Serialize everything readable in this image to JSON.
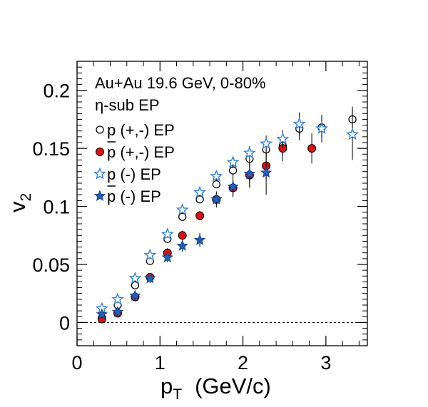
{
  "chart_data": {
    "type": "scatter",
    "xlim": [
      0,
      3.5
    ],
    "ylim": [
      -0.02,
      0.225
    ],
    "x_ticks": [
      0,
      1,
      2,
      3
    ],
    "y_ticks": [
      0,
      0.05,
      0.1,
      0.15,
      0.2
    ],
    "x_tick_labels": [
      "0",
      "1",
      "2",
      "3"
    ],
    "y_tick_labels": [
      "0",
      "0.05",
      "0.1",
      "0.15",
      "0.2"
    ],
    "xlabel": {
      "main": "p",
      "sub": "T",
      "unit": "(GeV/c)"
    },
    "ylabel": {
      "main": "v",
      "sub": "2"
    },
    "title_line1": "Au+Au 19.6 GeV,  0-80%",
    "title_line2": "η-sub EP",
    "zero_line": true,
    "legend_position": "top-left",
    "series": [
      {
        "name": "p (+,-) EP",
        "particle": "p",
        "antiparticle": false,
        "suffix": " (+,-) EP",
        "marker": "open-circle",
        "color": "#000000",
        "points": [
          {
            "x": 0.3,
            "y": 0.004,
            "err": 0.003
          },
          {
            "x": 0.49,
            "y": 0.015,
            "err": 0.003
          },
          {
            "x": 0.7,
            "y": 0.032,
            "err": 0.003
          },
          {
            "x": 0.88,
            "y": 0.053,
            "err": 0.003
          },
          {
            "x": 1.09,
            "y": 0.072,
            "err": 0.003
          },
          {
            "x": 1.27,
            "y": 0.091,
            "err": 0.003
          },
          {
            "x": 1.48,
            "y": 0.106,
            "err": 0.003
          },
          {
            "x": 1.68,
            "y": 0.119,
            "err": 0.003
          },
          {
            "x": 1.88,
            "y": 0.131,
            "err": 0.005
          },
          {
            "x": 2.08,
            "y": 0.141,
            "err": 0.006
          },
          {
            "x": 2.28,
            "y": 0.149,
            "err": 0.007
          },
          {
            "x": 2.48,
            "y": 0.152,
            "err": 0.008
          },
          {
            "x": 2.68,
            "y": 0.167,
            "err": 0.01
          },
          {
            "x": 2.95,
            "y": 0.168,
            "err": 0.009
          },
          {
            "x": 3.32,
            "y": 0.175,
            "err": 0.011
          }
        ]
      },
      {
        "name": "p̄ (+,-) EP",
        "particle": "p",
        "antiparticle": true,
        "suffix": " (+,-) EP",
        "marker": "filled-circle",
        "color": "#e01010",
        "points": [
          {
            "x": 0.3,
            "y": 0.003,
            "err": 0.003
          },
          {
            "x": 0.49,
            "y": 0.008,
            "err": 0.003
          },
          {
            "x": 0.7,
            "y": 0.022,
            "err": 0.003
          },
          {
            "x": 0.88,
            "y": 0.039,
            "err": 0.003
          },
          {
            "x": 1.09,
            "y": 0.06,
            "err": 0.004
          },
          {
            "x": 1.27,
            "y": 0.075,
            "err": 0.004
          },
          {
            "x": 1.48,
            "y": 0.092,
            "err": 0.004
          },
          {
            "x": 1.68,
            "y": 0.106,
            "err": 0.005
          },
          {
            "x": 1.88,
            "y": 0.116,
            "err": 0.007
          },
          {
            "x": 2.08,
            "y": 0.127,
            "err": 0.01
          },
          {
            "x": 2.28,
            "y": 0.135,
            "err": 0.012
          },
          {
            "x": 2.48,
            "y": 0.15,
            "err": 0.011
          },
          {
            "x": 2.83,
            "y": 0.15,
            "err": 0.013
          }
        ]
      },
      {
        "name": "p (-) EP",
        "particle": "p",
        "antiparticle": false,
        "suffix": " (-) EP",
        "marker": "open-star",
        "color": "#2f7fe0",
        "points": [
          {
            "x": 0.3,
            "y": 0.012,
            "err": 0.003
          },
          {
            "x": 0.49,
            "y": 0.02,
            "err": 0.003
          },
          {
            "x": 0.7,
            "y": 0.038,
            "err": 0.003
          },
          {
            "x": 0.88,
            "y": 0.058,
            "err": 0.003
          },
          {
            "x": 1.09,
            "y": 0.076,
            "err": 0.003
          },
          {
            "x": 1.27,
            "y": 0.097,
            "err": 0.003
          },
          {
            "x": 1.48,
            "y": 0.112,
            "err": 0.003
          },
          {
            "x": 1.68,
            "y": 0.126,
            "err": 0.004
          },
          {
            "x": 1.88,
            "y": 0.138,
            "err": 0.005
          },
          {
            "x": 2.08,
            "y": 0.146,
            "err": 0.006
          },
          {
            "x": 2.28,
            "y": 0.154,
            "err": 0.007
          },
          {
            "x": 2.48,
            "y": 0.158,
            "err": 0.008
          },
          {
            "x": 2.68,
            "y": 0.171,
            "err": 0.01
          },
          {
            "x": 2.95,
            "y": 0.167,
            "err": 0.012
          },
          {
            "x": 3.32,
            "y": 0.162,
            "err": 0.022
          }
        ]
      },
      {
        "name": "p̄ (-) EP",
        "particle": "p",
        "antiparticle": true,
        "suffix": " (-) EP",
        "marker": "filled-star",
        "color": "#1c5fc8",
        "points": [
          {
            "x": 0.3,
            "y": 0.007,
            "err": 0.003
          },
          {
            "x": 0.49,
            "y": 0.009,
            "err": 0.003
          },
          {
            "x": 0.7,
            "y": 0.023,
            "err": 0.003
          },
          {
            "x": 0.88,
            "y": 0.038,
            "err": 0.004
          },
          {
            "x": 1.09,
            "y": 0.056,
            "err": 0.004
          },
          {
            "x": 1.27,
            "y": 0.066,
            "err": 0.005
          },
          {
            "x": 1.48,
            "y": 0.071,
            "err": 0.006
          },
          {
            "x": 1.68,
            "y": 0.106,
            "err": 0.007
          },
          {
            "x": 1.88,
            "y": 0.117,
            "err": 0.009
          },
          {
            "x": 2.08,
            "y": 0.128,
            "err": 0.012
          },
          {
            "x": 2.28,
            "y": 0.129,
            "err": 0.019
          }
        ]
      }
    ]
  }
}
